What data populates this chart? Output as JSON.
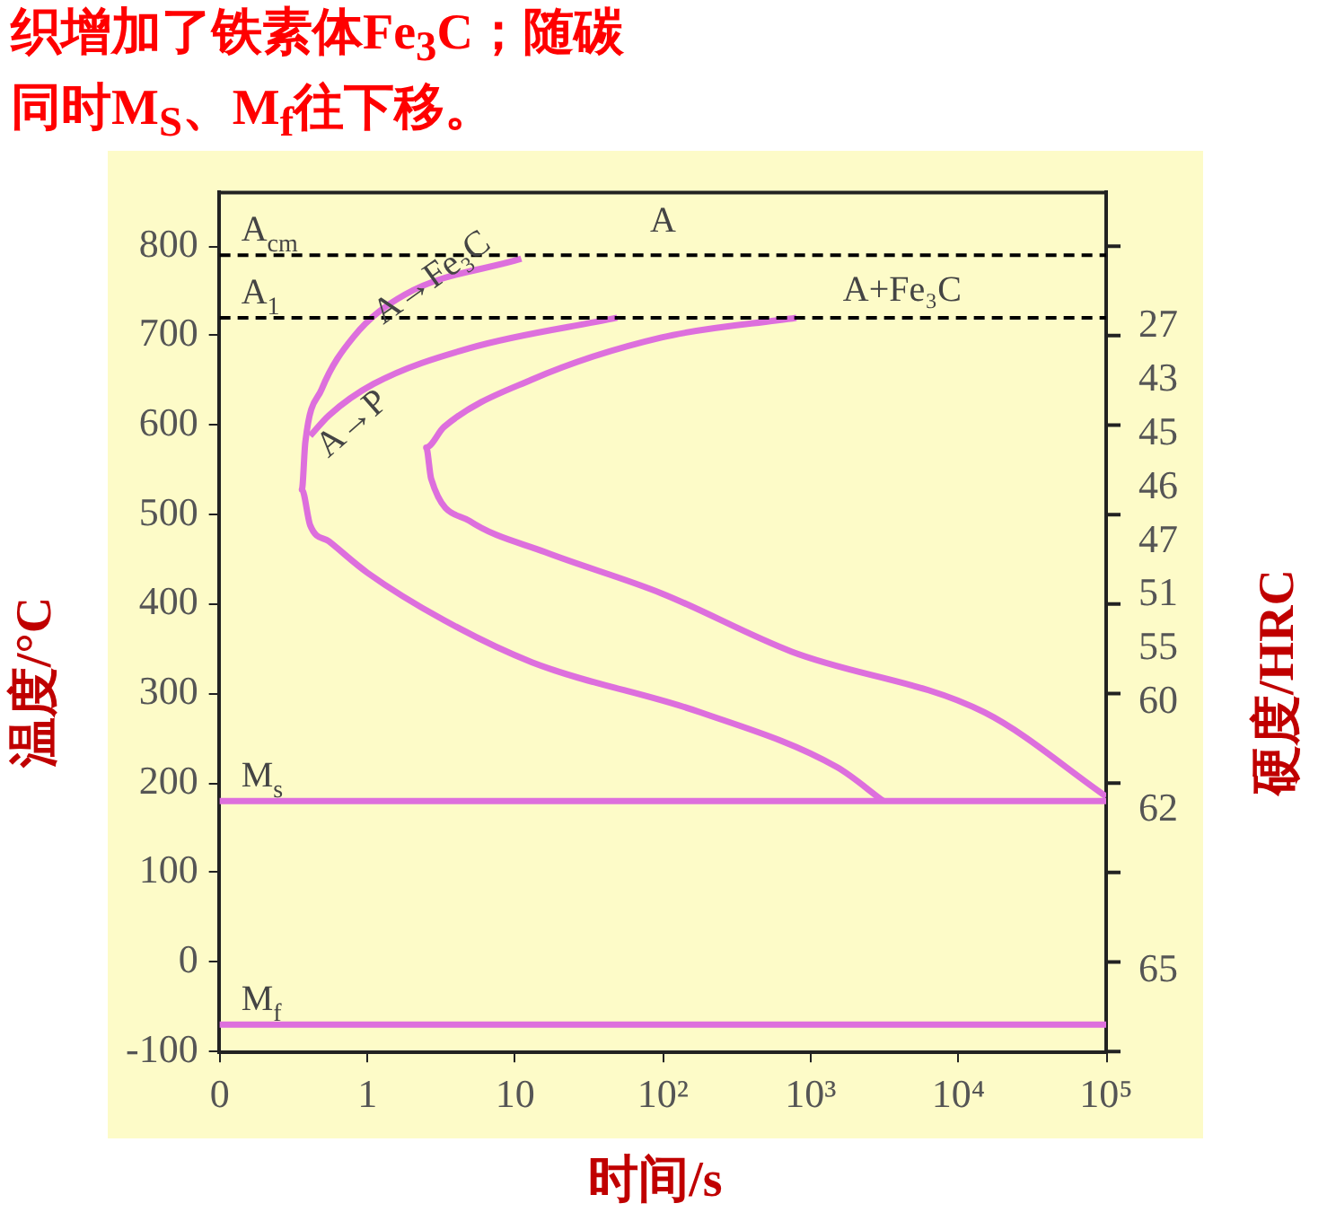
{
  "chart_data": {
    "type": "line",
    "ylabel": "温度/°C",
    "y2label": "硬度/HRC",
    "xlabel": "时间/s",
    "log": "x",
    "xlim": [
      0.1,
      100000
    ],
    "xticks": [
      {
        "value": 0.1,
        "label": "0"
      },
      1,
      10,
      {
        "value": 100,
        "label": "10²"
      },
      {
        "value": 1000,
        "label": "10³"
      },
      {
        "value": 10000,
        "label": "10⁴"
      },
      {
        "value": 100000,
        "label": "10⁵"
      }
    ],
    "ylim": [
      -100,
      860
    ],
    "yticks": [
      -100,
      0,
      100,
      200,
      300,
      400,
      500,
      600,
      700,
      800
    ],
    "y2_categories": [
      null,
      null,
      "27",
      "43",
      "45",
      "46",
      "47",
      "51",
      "55",
      "60",
      null,
      "62",
      null,
      null,
      "65",
      null
    ],
    "series": [
      {
        "color": "#dd6fdd",
        "x": [
          11,
          1.8,
          0.8,
          0.49,
          0.38,
          0.36,
          0.41,
          0.55,
          1,
          3.3,
          13,
          180,
          1500,
          3100
        ],
        "values": [
          786,
          746,
          698,
          640,
          581,
          528,
          488,
          470,
          435,
          382,
          335,
          279,
          218,
          180
        ]
      },
      {
        "color": "#dd6fdd",
        "x": [
          49,
          4.9,
          1.1,
          0.55,
          0.41
        ],
        "values": [
          720,
          686,
          646,
          611,
          588
        ]
      },
      {
        "color": "#dd6fdd",
        "x": [
          800,
          98,
          13,
          3.3,
          2.5,
          2.7,
          4.9,
          16,
          98,
          740,
          15000,
          100000
        ],
        "values": [
          720,
          698,
          651,
          598,
          575,
          540,
          493,
          458,
          412,
          347,
          279,
          185
        ]
      }
    ],
    "ref_lines": [
      {
        "axis": "y",
        "value": 790,
        "label": "A$_{cm}$",
        "color": "#000000",
        "line_style": "dashed"
      },
      {
        "axis": "y",
        "value": 720,
        "label": "A$_{1}$",
        "color": "#000000",
        "line_style": "dashed"
      },
      {
        "axis": "y",
        "value": 180,
        "label": "M$_{s}$",
        "color": "#dd6fdd",
        "line_style": "solid"
      },
      {
        "axis": "y",
        "value": -70,
        "label": "M$_{f}$",
        "color": "#dd6fdd",
        "line_style": "solid"
      }
    ],
    "annotations": [
      "A",
      "A+Fe₃C",
      "A→Fe₃C",
      "A→P",
      "织增加了铁素体Fe$_{3}$C；随碳",
      "同时M$_{S}$、M$_{f}$往下移。"
    ],
    "grid": false,
    "legend": false,
    "marker": "none",
    "line_style": "solid"
  }
}
